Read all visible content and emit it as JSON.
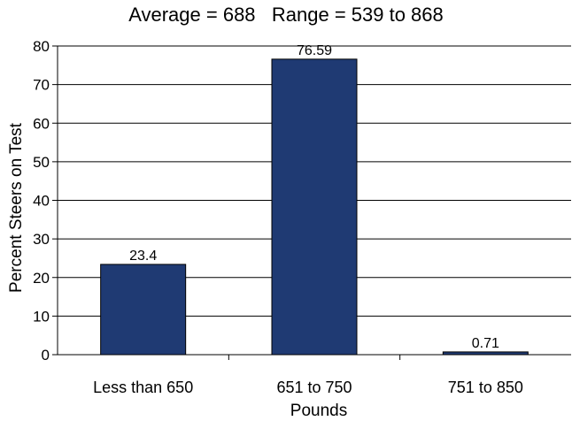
{
  "chart_data": {
    "type": "bar",
    "title": "Average = 688   Range = 539 to 868",
    "xlabel": "Pounds",
    "ylabel": "Percent Steers on Test",
    "categories": [
      "Less than 650",
      "651 to 750",
      "751 to 850"
    ],
    "values": [
      23.4,
      76.59,
      0.71
    ],
    "data_labels": [
      "23.4",
      "76.59",
      "0.71"
    ],
    "ylim": [
      0,
      80
    ],
    "yticks": [
      0,
      10,
      20,
      30,
      40,
      50,
      60,
      70,
      80
    ],
    "grid": true,
    "legend": "none",
    "bar_color": "#1f3a73"
  }
}
